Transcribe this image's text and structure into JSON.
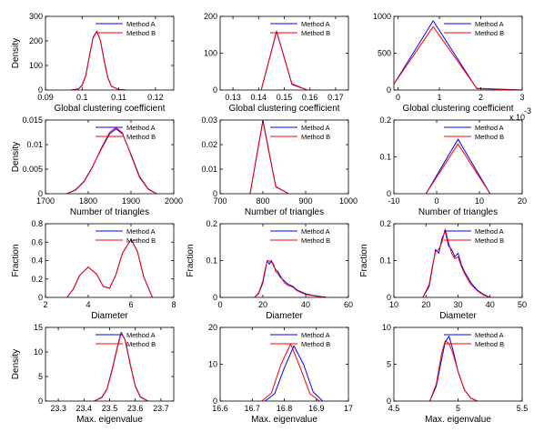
{
  "figure": {
    "legend_labels": [
      "Method A",
      "Method B"
    ],
    "colors": {
      "Method A": "#0000ff",
      "Method B": "#ff0000",
      "axis": "#000000",
      "background": "#ffffff"
    }
  },
  "chart_data": [
    {
      "type": "line",
      "xlabel": "Global clustering coefficient",
      "ylabel": "Density",
      "xlim": [
        0.09,
        0.125
      ],
      "ylim": [
        0,
        300
      ],
      "xticks": [
        "0.09",
        "0.1",
        "0.11",
        "0.12"
      ],
      "xtick_values": [
        0.09,
        0.1,
        0.11,
        0.12
      ],
      "yticks": [
        "0",
        "100",
        "200",
        "300"
      ],
      "ytick_values": [
        0,
        100,
        200,
        300
      ],
      "legend": "top-right",
      "grid": false,
      "series": [
        {
          "name": "Method A",
          "x": [
            0.097,
            0.099,
            0.1,
            0.101,
            0.102,
            0.103,
            0.104,
            0.105,
            0.106,
            0.107,
            0.108,
            0.11,
            0.112
          ],
          "y": [
            0,
            5,
            20,
            60,
            140,
            215,
            240,
            200,
            120,
            50,
            15,
            2,
            0
          ]
        },
        {
          "name": "Method B",
          "x": [
            0.097,
            0.099,
            0.1,
            0.101,
            0.102,
            0.103,
            0.104,
            0.105,
            0.106,
            0.107,
            0.108,
            0.11,
            0.112
          ],
          "y": [
            0,
            4,
            18,
            58,
            138,
            212,
            238,
            202,
            122,
            52,
            16,
            2,
            0
          ]
        }
      ]
    },
    {
      "type": "line",
      "xlabel": "Global clustering coefficient",
      "ylabel": "",
      "xlim": [
        0.125,
        0.175
      ],
      "ylim": [
        0,
        200
      ],
      "xticks": [
        "0.13",
        "0.14",
        "0.15",
        "0.16",
        "0.17"
      ],
      "xtick_values": [
        0.13,
        0.14,
        0.15,
        0.16,
        0.17
      ],
      "yticks": [
        "0",
        "100",
        "200"
      ],
      "ytick_values": [
        0,
        100,
        200
      ],
      "legend": "top-right",
      "grid": false,
      "series": [
        {
          "name": "Method A",
          "x": [
            0.141,
            0.147,
            0.153,
            0.159
          ],
          "y": [
            0,
            160,
            15,
            0
          ]
        },
        {
          "name": "Method B",
          "x": [
            0.141,
            0.147,
            0.153,
            0.159
          ],
          "y": [
            0,
            158,
            17,
            0
          ]
        }
      ]
    },
    {
      "type": "line",
      "xlabel": "Global clustering coefficient",
      "ylabel": "",
      "xlim": [
        -0.1,
        3
      ],
      "ylim": [
        0,
        1000
      ],
      "x_multiplier": "x 10",
      "x_exponent": "-3",
      "xticks": [
        "0",
        "1",
        "2",
        "3"
      ],
      "xtick_values": [
        0,
        1,
        2,
        3
      ],
      "yticks": [
        "0",
        "500",
        "1000"
      ],
      "ytick_values": [
        0,
        500,
        1000
      ],
      "legend": "top-right",
      "grid": false,
      "series": [
        {
          "name": "Method A",
          "x": [
            -0.1,
            0.85,
            1.9,
            3
          ],
          "y": [
            80,
            940,
            20,
            0
          ]
        },
        {
          "name": "Method B",
          "x": [
            -0.1,
            0.85,
            1.9,
            3
          ],
          "y": [
            80,
            860,
            25,
            0
          ]
        }
      ]
    },
    {
      "type": "line",
      "xlabel": "Number of triangles",
      "ylabel": "Density",
      "xlim": [
        1700,
        2000
      ],
      "ylim": [
        0,
        0.015
      ],
      "xticks": [
        "1700",
        "1800",
        "1900",
        "2000"
      ],
      "xtick_values": [
        1700,
        1800,
        1900,
        2000
      ],
      "yticks": [
        "0",
        "0.005",
        "0.01",
        "0.015"
      ],
      "ytick_values": [
        0,
        0.005,
        0.01,
        0.015
      ],
      "legend": "top-right",
      "grid": false,
      "series": [
        {
          "name": "Method A",
          "x": [
            1750,
            1770,
            1790,
            1810,
            1830,
            1850,
            1865,
            1880,
            1900,
            1920,
            1940,
            1960
          ],
          "y": [
            0,
            0.0008,
            0.0025,
            0.0055,
            0.009,
            0.0122,
            0.0132,
            0.0122,
            0.008,
            0.0035,
            0.001,
            0
          ]
        },
        {
          "name": "Method B",
          "x": [
            1750,
            1770,
            1790,
            1810,
            1830,
            1850,
            1865,
            1880,
            1900,
            1920,
            1940,
            1960
          ],
          "y": [
            0,
            0.0007,
            0.0024,
            0.0054,
            0.0092,
            0.0125,
            0.0135,
            0.0124,
            0.0078,
            0.0033,
            0.0009,
            0
          ]
        }
      ]
    },
    {
      "type": "line",
      "xlabel": "Number of triangles",
      "ylabel": "",
      "xlim": [
        700,
        1000
      ],
      "ylim": [
        0,
        0.03
      ],
      "xticks": [
        "700",
        "800",
        "900",
        "1000"
      ],
      "xtick_values": [
        700,
        800,
        900,
        1000
      ],
      "yticks": [
        "0",
        "0.01",
        "0.02",
        "0.03"
      ],
      "ytick_values": [
        0,
        0.01,
        0.02,
        0.03
      ],
      "legend": "top-right",
      "grid": false,
      "series": [
        {
          "name": "Method A",
          "x": [
            770,
            800,
            830,
            860
          ],
          "y": [
            0,
            0.03,
            0.003,
            0
          ]
        },
        {
          "name": "Method B",
          "x": [
            770,
            800,
            830,
            860
          ],
          "y": [
            0,
            0.0295,
            0.0028,
            0
          ]
        }
      ]
    },
    {
      "type": "line",
      "xlabel": "Number of triangles",
      "ylabel": "",
      "xlim": [
        -10,
        20
      ],
      "ylim": [
        0,
        0.2
      ],
      "xticks": [
        "-10",
        "0",
        "10",
        "20"
      ],
      "xtick_values": [
        -10,
        0,
        10,
        20
      ],
      "yticks": [
        "0",
        "0.1",
        "0.2"
      ],
      "ytick_values": [
        0,
        0.1,
        0.2
      ],
      "legend": "top-right",
      "grid": false,
      "series": [
        {
          "name": "Method A",
          "x": [
            -2.5,
            5,
            12.5
          ],
          "y": [
            0,
            0.148,
            0
          ]
        },
        {
          "name": "Method B",
          "x": [
            -2.5,
            5,
            12.5
          ],
          "y": [
            0,
            0.135,
            0
          ]
        }
      ]
    },
    {
      "type": "line",
      "xlabel": "Diameter",
      "ylabel": "Fraction",
      "xlim": [
        2,
        8
      ],
      "ylim": [
        0,
        0.8
      ],
      "xticks": [
        "2",
        "4",
        "6",
        "8"
      ],
      "xtick_values": [
        2,
        4,
        6,
        8
      ],
      "yticks": [
        "0",
        "0.2",
        "0.4",
        "0.6",
        "0.8"
      ],
      "ytick_values": [
        0,
        0.2,
        0.4,
        0.6,
        0.8
      ],
      "legend": "top-right",
      "grid": false,
      "series": [
        {
          "name": "Method A",
          "x": [
            3,
            3.3,
            3.6,
            4,
            4.4,
            4.7,
            5,
            5.3,
            5.6,
            6,
            6.3,
            6.6,
            7
          ],
          "y": [
            0,
            0.09,
            0.24,
            0.33,
            0.25,
            0.12,
            0.1,
            0.25,
            0.48,
            0.63,
            0.5,
            0.22,
            0
          ]
        },
        {
          "name": "Method B",
          "x": [
            3,
            3.3,
            3.6,
            4,
            4.4,
            4.7,
            5,
            5.3,
            5.6,
            6,
            6.3,
            6.6,
            7
          ],
          "y": [
            0,
            0.09,
            0.24,
            0.33,
            0.25,
            0.12,
            0.1,
            0.25,
            0.48,
            0.63,
            0.5,
            0.22,
            0
          ]
        }
      ]
    },
    {
      "type": "line",
      "xlabel": "Diameter",
      "ylabel": "Fraction",
      "xlim": [
        0,
        60
      ],
      "ylim": [
        0,
        0.2
      ],
      "xticks": [
        "0",
        "20",
        "40",
        "60"
      ],
      "xtick_values": [
        0,
        20,
        40,
        60
      ],
      "yticks": [
        "0",
        "0.1",
        "0.2"
      ],
      "ytick_values": [
        0,
        0.1,
        0.2
      ],
      "legend": "top-right",
      "grid": false,
      "series": [
        {
          "name": "Method A",
          "x": [
            16,
            18,
            20,
            21,
            22,
            23,
            24,
            25,
            26,
            27,
            28,
            29,
            30,
            32,
            34,
            36,
            38,
            40,
            43,
            46,
            50
          ],
          "y": [
            0,
            0.01,
            0.04,
            0.07,
            0.1,
            0.09,
            0.1,
            0.085,
            0.075,
            0.07,
            0.06,
            0.05,
            0.045,
            0.035,
            0.03,
            0.02,
            0.015,
            0.01,
            0.006,
            0.003,
            0
          ]
        },
        {
          "name": "Method B",
          "x": [
            16,
            18,
            20,
            21,
            22,
            23,
            24,
            25,
            26,
            27,
            28,
            29,
            30,
            32,
            34,
            36,
            38,
            40,
            43,
            46,
            50
          ],
          "y": [
            0,
            0.012,
            0.045,
            0.075,
            0.098,
            0.1,
            0.095,
            0.09,
            0.07,
            0.065,
            0.055,
            0.05,
            0.04,
            0.032,
            0.028,
            0.018,
            0.013,
            0.008,
            0.005,
            0.002,
            0
          ]
        }
      ]
    },
    {
      "type": "line",
      "xlabel": "Diameter",
      "ylabel": "Fraction",
      "xlim": [
        10,
        50
      ],
      "ylim": [
        0,
        0.2
      ],
      "xticks": [
        "10",
        "20",
        "30",
        "40",
        "50"
      ],
      "xtick_values": [
        10,
        20,
        30,
        40,
        50
      ],
      "yticks": [
        "0",
        "0.1",
        "0.2"
      ],
      "ytick_values": [
        0,
        0.1,
        0.2
      ],
      "legend": "top-right",
      "grid": false,
      "series": [
        {
          "name": "Method A",
          "x": [
            19,
            21,
            22,
            23,
            24,
            25,
            26,
            27,
            28,
            29,
            30,
            31,
            32,
            34,
            36,
            38,
            40
          ],
          "y": [
            0,
            0.03,
            0.08,
            0.13,
            0.12,
            0.16,
            0.18,
            0.14,
            0.13,
            0.11,
            0.12,
            0.09,
            0.07,
            0.04,
            0.02,
            0.008,
            0
          ]
        },
        {
          "name": "Method B",
          "x": [
            19,
            21,
            22,
            23,
            24,
            25,
            26,
            27,
            28,
            29,
            30,
            31,
            32,
            34,
            36,
            38,
            40
          ],
          "y": [
            0,
            0.035,
            0.085,
            0.125,
            0.13,
            0.15,
            0.185,
            0.15,
            0.12,
            0.105,
            0.11,
            0.085,
            0.065,
            0.035,
            0.018,
            0.006,
            0
          ]
        }
      ]
    },
    {
      "type": "line",
      "xlabel": "Max. eigenvalue",
      "ylabel": "Density",
      "xlim": [
        23.25,
        23.75
      ],
      "ylim": [
        0,
        15
      ],
      "xticks": [
        "23.3",
        "23.4",
        "23.5",
        "23.6",
        "23.7"
      ],
      "xtick_values": [
        23.3,
        23.4,
        23.5,
        23.6,
        23.7
      ],
      "yticks": [
        "0",
        "5",
        "10",
        "15"
      ],
      "ytick_values": [
        0,
        5,
        10,
        15
      ],
      "legend": "top-right",
      "grid": false,
      "series": [
        {
          "name": "Method A",
          "x": [
            23.44,
            23.47,
            23.49,
            23.51,
            23.53,
            23.545,
            23.56,
            23.58,
            23.6,
            23.62,
            23.65
          ],
          "y": [
            0,
            0.8,
            2.5,
            6.5,
            11,
            14,
            12.5,
            7.5,
            3,
            0.8,
            0
          ]
        },
        {
          "name": "Method B",
          "x": [
            23.44,
            23.47,
            23.49,
            23.51,
            23.53,
            23.545,
            23.56,
            23.58,
            23.6,
            23.62,
            23.65
          ],
          "y": [
            0,
            0.7,
            2.4,
            6.3,
            10.8,
            13.8,
            12.6,
            7.7,
            3.1,
            0.9,
            0
          ]
        }
      ]
    },
    {
      "type": "line",
      "xlabel": "Max. eigenvalue",
      "ylabel": "",
      "xlim": [
        16.6,
        17
      ],
      "ylim": [
        0,
        20
      ],
      "xticks": [
        "16.6",
        "16.7",
        "16.8",
        "16.9",
        "17"
      ],
      "xtick_values": [
        16.6,
        16.7,
        16.8,
        16.9,
        17
      ],
      "yticks": [
        "0",
        "10",
        "20"
      ],
      "ytick_values": [
        0,
        10,
        20
      ],
      "legend": "top-right",
      "grid": false,
      "series": [
        {
          "name": "Method A",
          "x": [
            16.74,
            16.77,
            16.8,
            16.83,
            16.86,
            16.89,
            16.92
          ],
          "y": [
            0,
            2,
            9,
            15,
            10,
            2.5,
            0
          ]
        },
        {
          "name": "Method B",
          "x": [
            16.73,
            16.76,
            16.79,
            16.82,
            16.85,
            16.88,
            16.91
          ],
          "y": [
            0,
            2.2,
            10,
            15.5,
            9,
            2,
            0
          ]
        }
      ]
    },
    {
      "type": "line",
      "xlabel": "Max. eigenvalue",
      "ylabel": "",
      "xlim": [
        4.5,
        5.5
      ],
      "ylim": [
        0,
        10
      ],
      "xticks": [
        "4.5",
        "5",
        "5.5"
      ],
      "xtick_values": [
        4.5,
        5,
        5.5
      ],
      "yticks": [
        "0",
        "5",
        "10"
      ],
      "ytick_values": [
        0,
        5,
        10
      ],
      "legend": "top-right",
      "grid": false,
      "series": [
        {
          "name": "Method A",
          "x": [
            4.78,
            4.83,
            4.87,
            4.9,
            4.93,
            4.96,
            5.0,
            5.05,
            5.1,
            5.15
          ],
          "y": [
            0,
            2,
            5.5,
            8,
            8.8,
            7,
            4,
            1.5,
            0.4,
            0
          ]
        },
        {
          "name": "Method B",
          "x": [
            4.78,
            4.83,
            4.87,
            4.9,
            4.93,
            4.96,
            5.0,
            5.05,
            5.1,
            5.15
          ],
          "y": [
            0,
            2.3,
            6.3,
            8.2,
            7.8,
            6.5,
            4,
            1.5,
            0.4,
            0
          ]
        }
      ]
    }
  ]
}
